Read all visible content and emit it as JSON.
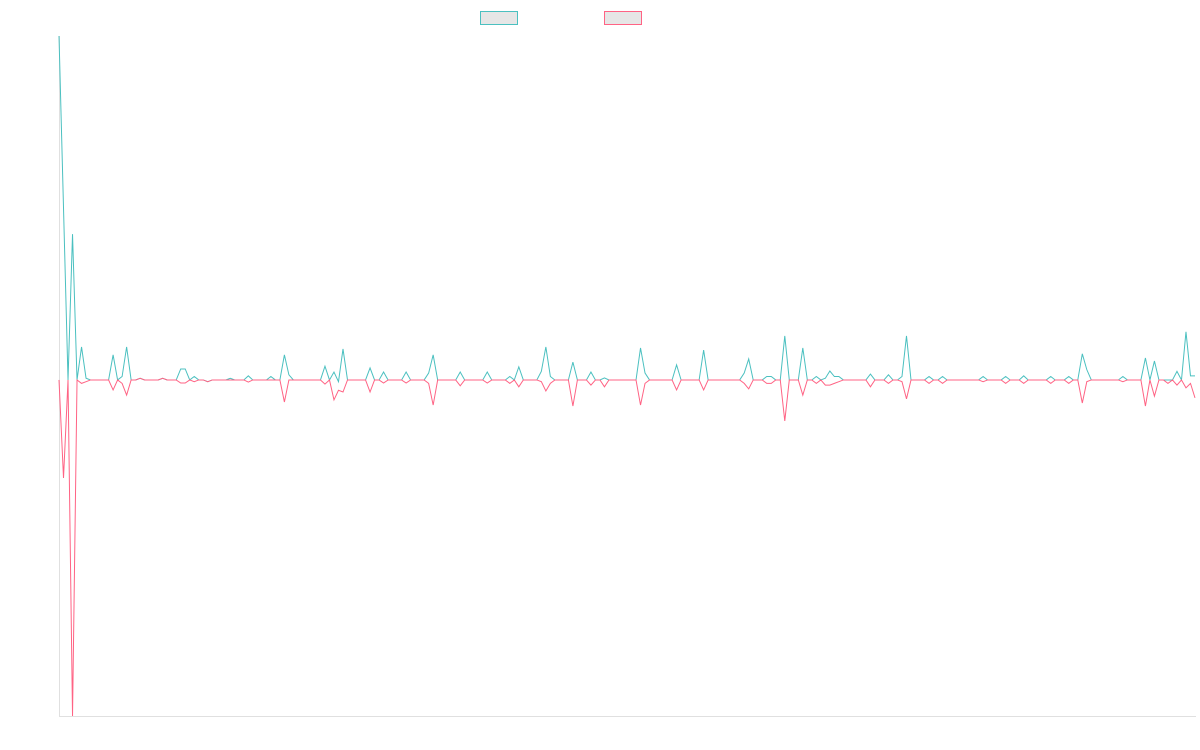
{
  "chart_data": {
    "type": "line",
    "title": "",
    "xlabel": "",
    "ylabel": "",
    "ylim": [
      -97.7,
      100
    ],
    "grid": false,
    "legend_position": "top",
    "series": [
      {
        "label": "",
        "color": "#4bc0c0",
        "values": [
          100,
          50,
          0,
          42.4,
          0,
          9.6,
          0.5,
          0,
          0,
          0,
          0,
          0,
          7.3,
          0,
          1,
          9.6,
          0,
          0,
          0.5,
          0,
          0,
          0,
          0,
          0.5,
          0,
          0,
          0,
          3.2,
          3.2,
          0,
          1,
          0,
          0,
          -0.5,
          0,
          0,
          0,
          0,
          0.5,
          0,
          0,
          0,
          1.2,
          0,
          0,
          0,
          0,
          1,
          0,
          0,
          7.3,
          1.5,
          0,
          0,
          0,
          0,
          0,
          0,
          0,
          4,
          0,
          2.3,
          -0.5,
          9,
          0,
          0,
          0,
          0,
          0,
          3.5,
          0,
          0,
          2.3,
          0,
          0,
          0,
          0,
          2.3,
          0,
          0,
          0,
          0,
          2,
          7.3,
          0,
          0,
          0,
          0,
          0,
          2.3,
          0,
          0,
          0,
          0,
          0,
          2.3,
          0,
          0,
          0,
          0,
          1,
          0,
          3.8,
          0,
          0,
          0,
          0,
          2.5,
          9.6,
          1,
          0,
          0,
          0,
          0,
          5.2,
          0,
          0,
          0,
          2.3,
          0,
          0,
          0.6,
          0,
          0,
          0,
          0,
          0,
          0,
          0,
          9.3,
          2,
          0,
          0,
          0,
          0,
          0,
          0,
          4.4,
          0,
          0,
          0,
          0,
          0,
          8.7,
          0,
          0,
          0,
          0,
          0,
          0,
          0,
          0,
          2,
          6.1,
          0,
          0,
          0,
          1,
          1,
          0,
          0,
          12.8,
          0,
          0,
          0,
          9.3,
          0,
          0,
          1,
          0,
          0.5,
          2.6,
          1,
          1,
          0,
          0,
          0,
          0,
          0,
          0,
          1.7,
          0,
          0,
          0,
          1.5,
          0,
          0,
          1,
          12.8,
          0,
          0,
          0,
          0,
          1,
          0,
          0,
          1,
          0,
          0,
          0,
          0,
          0,
          0,
          0,
          0,
          1,
          0,
          0,
          0,
          0,
          1,
          0,
          0,
          0,
          1.2,
          0,
          0,
          0,
          0,
          0,
          1,
          0,
          0,
          0,
          1,
          0,
          0,
          7.6,
          3,
          0,
          0,
          0,
          0,
          0,
          0,
          0,
          1,
          0,
          0,
          0,
          0,
          6.4,
          0,
          5.5,
          0,
          0,
          0,
          0,
          2.5,
          0,
          14,
          1.2,
          1.2
        ]
      },
      {
        "label": "",
        "color": "#ff6384",
        "values": [
          0,
          -28.5,
          0,
          -97.7,
          0,
          -1,
          -0.5,
          0,
          0,
          0,
          0,
          0,
          -2.9,
          0,
          -1,
          -4.4,
          0,
          0,
          0.5,
          0,
          0,
          0,
          0,
          0.5,
          0,
          0,
          0,
          -0.9,
          -0.9,
          0,
          -0.5,
          0,
          0,
          -0.5,
          0,
          0,
          0,
          0,
          0,
          0,
          0,
          0,
          -0.6,
          0,
          0,
          0,
          0,
          0,
          0,
          0,
          -6.4,
          0,
          0,
          0,
          0,
          0,
          0,
          0,
          0,
          -1.2,
          0,
          -5.8,
          -3,
          -3.5,
          0,
          0,
          0,
          0,
          0,
          -3.5,
          0,
          0,
          -0.9,
          0,
          0,
          0,
          0,
          -0.9,
          0,
          0,
          0,
          0,
          -1,
          -7.3,
          0,
          0,
          0,
          0,
          0,
          -1.7,
          0,
          0,
          0,
          0,
          0,
          -0.9,
          0,
          0,
          0,
          0,
          -1,
          0,
          -2,
          0,
          0,
          0,
          0,
          -0.5,
          -3.2,
          -1,
          0,
          0,
          0,
          0,
          -7.6,
          0,
          0,
          0,
          -1.5,
          0,
          0,
          -2,
          0,
          0,
          0,
          0,
          0,
          0,
          0,
          -7.3,
          -1,
          0,
          0,
          0,
          0,
          0,
          0,
          -2.9,
          0,
          0,
          0,
          0,
          0,
          -2.9,
          0,
          0,
          0,
          0,
          0,
          0,
          0,
          0,
          -1,
          -2.6,
          0,
          0,
          0,
          -1,
          -1,
          0,
          0,
          -11.9,
          0,
          0,
          0,
          -4.4,
          0,
          0,
          -1,
          0,
          -1.5,
          -1.5,
          -1,
          -0.5,
          0,
          0,
          0,
          0,
          0,
          0,
          -2,
          0,
          0,
          0,
          -1,
          0,
          0,
          -0.5,
          -5.5,
          0,
          0,
          0,
          0,
          -1,
          0,
          0,
          -1,
          0,
          0,
          0,
          0,
          0,
          0,
          0,
          0,
          -0.5,
          0,
          0,
          0,
          0,
          -1,
          0,
          0,
          0,
          -1,
          0,
          0,
          0,
          0,
          0,
          -1,
          0,
          0,
          0,
          -1,
          0,
          0,
          -6.7,
          -0.5,
          0,
          0,
          0,
          0,
          0,
          0,
          0,
          -0.5,
          0,
          0,
          0,
          0,
          -7.6,
          0,
          -4.7,
          0,
          0,
          -1,
          0,
          -1.5,
          0,
          -2.3,
          -1,
          -5.2
        ]
      }
    ]
  }
}
